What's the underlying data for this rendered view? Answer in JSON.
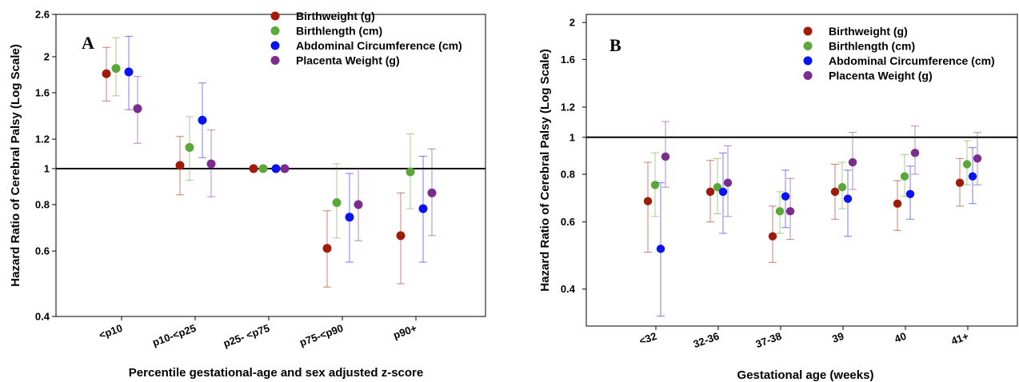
{
  "colors": {
    "birthweight": "#a11a0a",
    "birthlength": "#5aa83a",
    "abdominal": "#0a14f0",
    "placenta": "#7b2c8e",
    "ref_line": "#000000"
  },
  "chart_data": [
    {
      "panel": "A",
      "type": "scatter",
      "scale": "log",
      "ylabel": "Hazard Ratio of Cerebral Palsy (Log Scale)",
      "xlabel": "Percentile gestational-age and sex adjusted z-score",
      "ylim": [
        0.4,
        2.6
      ],
      "yticks": [
        {
          "value": 0.4,
          "label": "0.4"
        },
        {
          "value": 0.6,
          "label": "0.6"
        },
        {
          "value": 0.8,
          "label": "0.8"
        },
        {
          "value": 1.0,
          "label": "1"
        },
        {
          "value": 1.2,
          "label": "1.2"
        },
        {
          "value": 1.6,
          "label": "1.6"
        },
        {
          "value": 2.0,
          "label": "2"
        },
        {
          "value": 2.6,
          "label": "2.6"
        }
      ],
      "reference_line": 1,
      "categories": [
        "<p10",
        "p10-<p25",
        "p25- <p75",
        "p75-<p90",
        "p90+"
      ],
      "legend_position": "top-right",
      "series": [
        {
          "name": "Birthweight (g)",
          "color_key": "birthweight",
          "values": [
            1.8,
            1.02,
            1.0,
            0.61,
            0.66
          ],
          "lower": [
            1.52,
            0.85,
            1.0,
            0.48,
            0.49
          ],
          "upper": [
            2.12,
            1.22,
            1.0,
            0.77,
            0.86
          ]
        },
        {
          "name": "Birthlength (cm)",
          "color_key": "birthlength",
          "values": [
            1.86,
            1.14,
            1.0,
            0.81,
            0.98
          ],
          "lower": [
            1.57,
            0.93,
            1.0,
            0.65,
            0.78
          ],
          "upper": [
            2.25,
            1.38,
            1.0,
            1.03,
            1.24
          ]
        },
        {
          "name": "Abdominal Circumference (cm)",
          "color_key": "abdominal",
          "values": [
            1.82,
            1.35,
            1.0,
            0.74,
            0.78
          ],
          "lower": [
            1.44,
            1.07,
            1.0,
            0.56,
            0.56
          ],
          "upper": [
            2.27,
            1.7,
            1.0,
            0.97,
            1.08
          ]
        },
        {
          "name": "Placenta Weight (g)",
          "color_key": "placenta",
          "values": [
            1.45,
            1.03,
            1.0,
            0.8,
            0.86
          ],
          "lower": [
            1.17,
            0.84,
            1.0,
            0.64,
            0.66
          ],
          "upper": [
            1.77,
            1.27,
            1.0,
            1.0,
            1.13
          ]
        }
      ]
    },
    {
      "panel": "B",
      "type": "scatter",
      "scale": "log",
      "ylabel": "Hazard Ratio of Cerebral Palsy (Log Scale)",
      "xlabel": "Gestational age (weeks)",
      "ylim": [
        0.32,
        2.1
      ],
      "yticks": [
        {
          "value": 0.4,
          "label": "0.4"
        },
        {
          "value": 0.6,
          "label": "0.6"
        },
        {
          "value": 0.8,
          "label": "0.8"
        },
        {
          "value": 1.0,
          "label": "1"
        },
        {
          "value": 1.2,
          "label": "1.2"
        },
        {
          "value": 1.6,
          "label": "1.6"
        },
        {
          "value": 2.0,
          "label": "2"
        }
      ],
      "reference_line": 1,
      "categories": [
        "<32",
        "32-36",
        "37-38",
        "39",
        "40",
        "41+"
      ],
      "legend_position": "top-right",
      "series": [
        {
          "name": "Birthweight (g)",
          "color_key": "birthweight",
          "values": [
            0.68,
            0.72,
            0.55,
            0.72,
            0.67,
            0.76
          ],
          "lower": [
            0.5,
            0.6,
            0.47,
            0.61,
            0.57,
            0.66
          ],
          "upper": [
            0.86,
            0.87,
            0.66,
            0.85,
            0.77,
            0.88
          ]
        },
        {
          "name": "Birthlength (cm)",
          "color_key": "birthlength",
          "values": [
            0.75,
            0.74,
            0.64,
            0.74,
            0.79,
            0.85
          ],
          "lower": [
            0.62,
            0.63,
            0.56,
            0.65,
            0.7,
            0.75
          ],
          "upper": [
            0.91,
            0.88,
            0.72,
            0.86,
            0.9,
            0.98
          ]
        },
        {
          "name": "Abdominal Circumference (cm)",
          "color_key": "abdominal",
          "values": [
            0.51,
            0.72,
            0.7,
            0.69,
            0.71,
            0.79
          ],
          "lower": [
            0.34,
            0.56,
            0.58,
            0.55,
            0.61,
            0.67
          ],
          "upper": [
            0.76,
            0.91,
            0.82,
            0.82,
            0.84,
            0.94
          ]
        },
        {
          "name": "Placenta Weight (g)",
          "color_key": "placenta",
          "values": [
            0.89,
            0.76,
            0.64,
            0.86,
            0.91,
            0.88
          ],
          "lower": [
            0.74,
            0.62,
            0.54,
            0.73,
            0.8,
            0.75
          ],
          "upper": [
            1.1,
            0.95,
            0.78,
            1.03,
            1.07,
            1.03
          ]
        }
      ]
    }
  ]
}
